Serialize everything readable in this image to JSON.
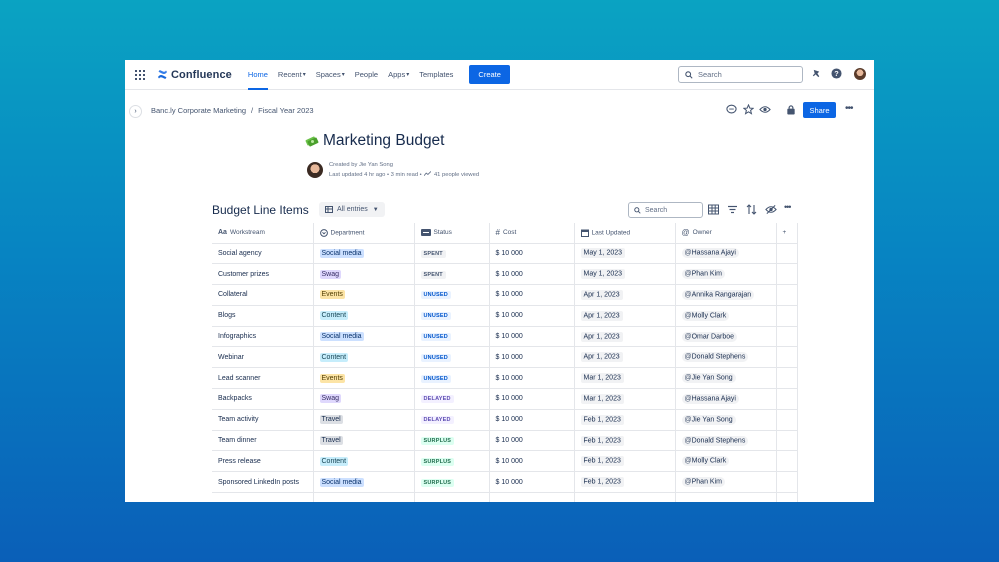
{
  "nav": {
    "product": "Confluence",
    "items": [
      {
        "label": "Home",
        "active": true,
        "dropdown": false
      },
      {
        "label": "Recent",
        "active": false,
        "dropdown": true
      },
      {
        "label": "Spaces",
        "active": false,
        "dropdown": true
      },
      {
        "label": "People",
        "active": false,
        "dropdown": false
      },
      {
        "label": "Apps",
        "active": false,
        "dropdown": true
      },
      {
        "label": "Templates",
        "active": false,
        "dropdown": false
      }
    ],
    "create_label": "Create",
    "search_placeholder": "Search"
  },
  "breadcrumb": [
    "Banc.ly Corporate Marketing",
    "Fiscal Year 2023"
  ],
  "share_label": "Share",
  "page": {
    "title": "Marketing Budget",
    "byline_line1": "Created by Jie Yan Song",
    "byline_line2": "Last updated 4 hr ago • 3 min read •",
    "views": "41 people viewed"
  },
  "database": {
    "title": "Budget Line Items",
    "view_label": "All entries",
    "search_placeholder": "Search",
    "columns": [
      "Workstream",
      "Department",
      "Status",
      "Cost",
      "Last Updated",
      "Owner"
    ],
    "rows": [
      {
        "workstream": "Social agency",
        "dept": "Social media",
        "status": "SPENT",
        "cost": "$ 10 000",
        "updated": "May 1, 2023",
        "owner": "Hassana Ajayi"
      },
      {
        "workstream": "Customer prizes",
        "dept": "Swag",
        "status": "SPENT",
        "cost": "$ 10 000",
        "updated": "May 1, 2023",
        "owner": "Phan Kim"
      },
      {
        "workstream": "Collateral",
        "dept": "Events",
        "status": "UNUSED",
        "cost": "$ 10 000",
        "updated": "Apr 1, 2023",
        "owner": "Annika Rangarajan"
      },
      {
        "workstream": "Blogs",
        "dept": "Content",
        "status": "UNUSED",
        "cost": "$ 10 000",
        "updated": "Apr 1, 2023",
        "owner": "Molly Clark"
      },
      {
        "workstream": "Infographics",
        "dept": "Social media",
        "status": "UNUSED",
        "cost": "$ 10 000",
        "updated": "Apr 1, 2023",
        "owner": "Omar Darboe"
      },
      {
        "workstream": "Webinar",
        "dept": "Content",
        "status": "UNUSED",
        "cost": "$ 10 000",
        "updated": "Apr 1, 2023",
        "owner": "Donald Stephens"
      },
      {
        "workstream": "Lead scanner",
        "dept": "Events",
        "status": "UNUSED",
        "cost": "$ 10 000",
        "updated": "Mar 1, 2023",
        "owner": "Jie Yan Song"
      },
      {
        "workstream": "Backpacks",
        "dept": "Swag",
        "status": "DELAYED",
        "cost": "$ 10 000",
        "updated": "Mar 1, 2023",
        "owner": "Hassana Ajayi"
      },
      {
        "workstream": "Team activity",
        "dept": "Travel",
        "status": "DELAYED",
        "cost": "$ 10 000",
        "updated": "Feb 1, 2023",
        "owner": "Jie Yan Song"
      },
      {
        "workstream": "Team dinner",
        "dept": "Travel",
        "status": "SURPLUS",
        "cost": "$ 10 000",
        "updated": "Feb 1, 2023",
        "owner": "Donald Stephens"
      },
      {
        "workstream": "Press release",
        "dept": "Content",
        "status": "SURPLUS",
        "cost": "$ 10 000",
        "updated": "Feb 1, 2023",
        "owner": "Molly Clark"
      },
      {
        "workstream": "Sponsored LinkedIn posts",
        "dept": "Social media",
        "status": "SURPLUS",
        "cost": "$ 10 000",
        "updated": "Feb 1, 2023",
        "owner": "Phan Kim"
      }
    ]
  },
  "colors": {
    "accent": "#0c66e4",
    "dept": {
      "Social media": {
        "bg": "#cce0ff",
        "fg": "#09326c"
      },
      "Swag": {
        "bg": "#dfd8fd",
        "fg": "#352c63"
      },
      "Events": {
        "bg": "#fce4a6",
        "fg": "#533f04"
      },
      "Content": {
        "bg": "#c6edfb",
        "fg": "#164555"
      },
      "Travel": {
        "bg": "#dcdfe4",
        "fg": "#172b4d"
      }
    },
    "status": {
      "SPENT": {
        "bg": "#f1f2f4",
        "fg": "#44546f"
      },
      "UNUSED": {
        "bg": "#e9f2ff",
        "fg": "#0055cc"
      },
      "DELAYED": {
        "bg": "#f3f0ff",
        "fg": "#5e4db2"
      },
      "SURPLUS": {
        "bg": "#dcfff1",
        "fg": "#216e4e"
      }
    }
  }
}
